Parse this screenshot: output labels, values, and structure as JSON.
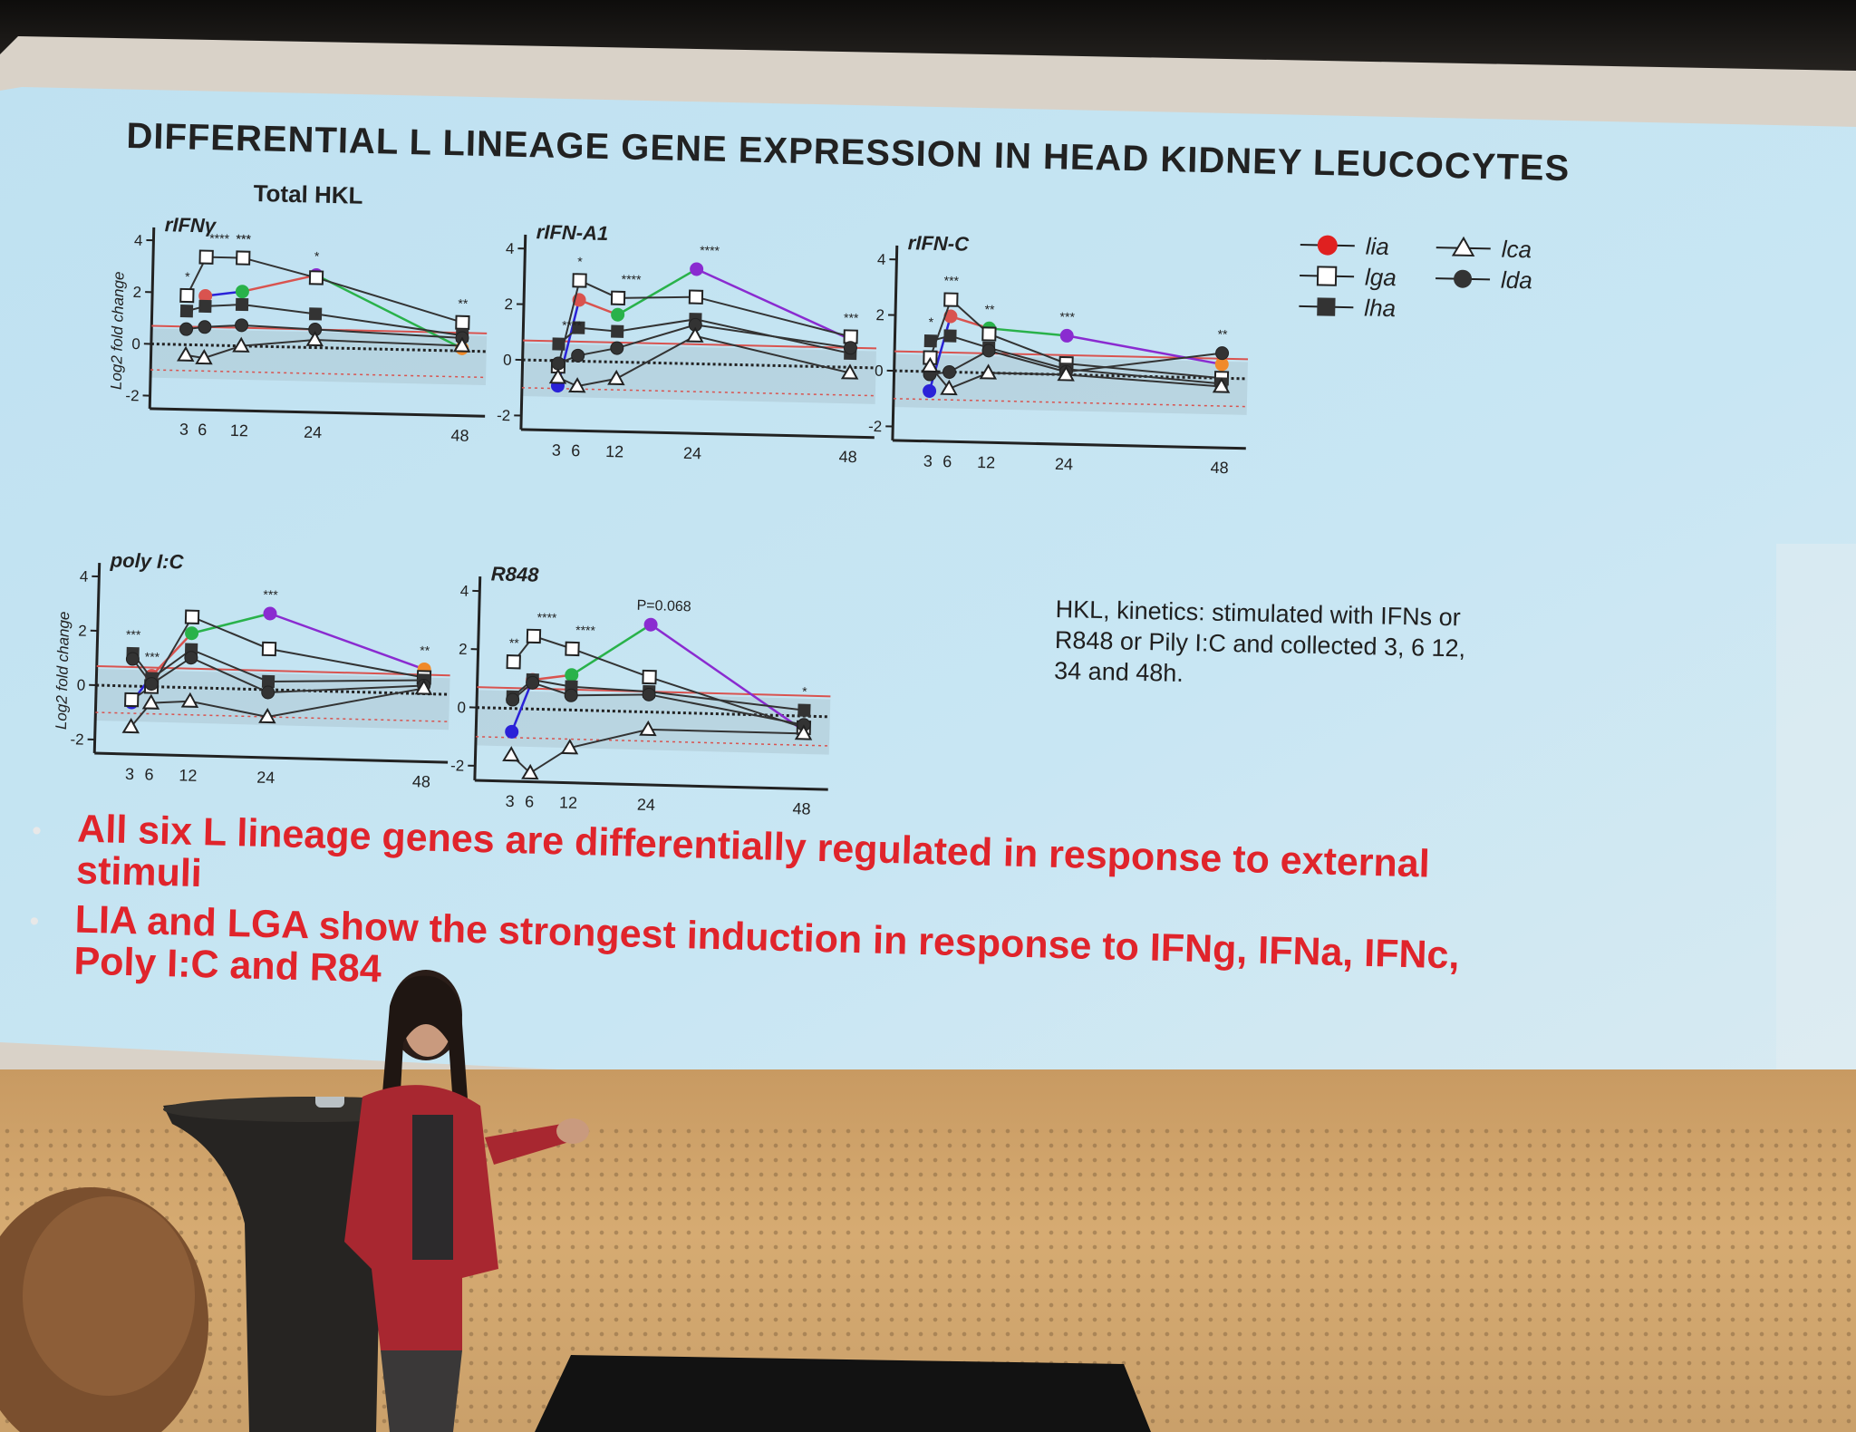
{
  "slide": {
    "title": "DIFFERENTIAL L LINEAGE GENE EXPRESSION  IN HEAD KIDNEY LEUCOCYTES",
    "panel_label": "Total HKL",
    "y_axis_label": "Log2 fold change",
    "description_lines": [
      "HKL, kinetics: stimulated with IFNs or",
      "R848 or Pily I:C and collected 3, 6 12,",
      "34 and 48h."
    ],
    "bullets": [
      {
        "lines": [
          "All six L lineage genes are differentially regulated in response to external",
          "stimuli"
        ]
      },
      {
        "lines": [
          "LIA and LGA show the strongest induction in response to IFNg, IFNa, IFNc,",
          "Poly I:C and R84"
        ]
      }
    ],
    "legend": [
      {
        "label": "lia",
        "marker": "filled-circle",
        "color": "#e02020"
      },
      {
        "label": "lca",
        "marker": "open-triangle",
        "color": "#222222"
      },
      {
        "label": "lga",
        "marker": "open-square",
        "color": "#222222"
      },
      {
        "label": "lda",
        "marker": "filled-circle",
        "color": "#333333"
      },
      {
        "label": "lha",
        "marker": "filled-square",
        "color": "#333333"
      }
    ],
    "colors": {
      "slide_bg": "#c6e4f2",
      "bullet_red": "#e0242b",
      "blue_point": "#2a22d8",
      "green_point": "#29b24a",
      "purple_point": "#8a2bd0",
      "orange_point": "#f08a2a",
      "reference_red": "#d9534f"
    }
  },
  "chart_data": [
    {
      "type": "line",
      "title": "rIFNγ",
      "x": [
        3,
        6,
        12,
        24,
        48
      ],
      "y_ticks": [
        4,
        2,
        0,
        -2
      ],
      "ylim": [
        -2.5,
        4.5
      ],
      "annotations": [
        "*",
        "****",
        "***",
        "***",
        "*",
        "**"
      ],
      "series": [
        {
          "name": "lia",
          "values": [
            null,
            1.9,
            2.1,
            2.8,
            0.1
          ]
        },
        {
          "name": "lga",
          "values": [
            1.9,
            3.4,
            3.4,
            2.7,
            1.1
          ]
        },
        {
          "name": "lha",
          "values": [
            1.3,
            1.5,
            1.6,
            1.3,
            0.6
          ]
        },
        {
          "name": "lda",
          "values": [
            0.6,
            0.7,
            0.8,
            0.7,
            0.5
          ]
        },
        {
          "name": "lca",
          "values": [
            -0.4,
            -0.5,
            0.0,
            0.3,
            0.2
          ]
        }
      ]
    },
    {
      "type": "line",
      "title": "rIFN-A1",
      "x": [
        3,
        6,
        12,
        24,
        48
      ],
      "y_ticks": [
        4,
        2,
        0,
        -2
      ],
      "ylim": [
        -2.5,
        4.5
      ],
      "annotations": [
        "****",
        "*",
        "****",
        "****",
        "***"
      ],
      "series": [
        {
          "name": "lia",
          "values": [
            -0.9,
            2.2,
            1.7,
            3.4,
            1.0
          ]
        },
        {
          "name": "lga",
          "values": [
            -0.2,
            2.9,
            2.3,
            2.4,
            1.1
          ]
        },
        {
          "name": "lha",
          "values": [
            0.6,
            1.2,
            1.1,
            1.6,
            0.5
          ]
        },
        {
          "name": "lda",
          "values": [
            -0.1,
            0.2,
            0.5,
            1.4,
            0.7
          ]
        },
        {
          "name": "lca",
          "values": [
            -0.6,
            -0.9,
            -0.6,
            1.0,
            -0.2
          ]
        }
      ]
    },
    {
      "type": "line",
      "title": "rIFN-C",
      "x": [
        3,
        6,
        12,
        24,
        48
      ],
      "y_ticks": [
        4,
        2,
        0,
        -2
      ],
      "ylim": [
        -2.5,
        4.5
      ],
      "annotations": [
        "*",
        "***",
        "**",
        "***",
        "**"
      ],
      "series": [
        {
          "name": "lia",
          "values": [
            -0.7,
            2.0,
            1.6,
            1.4,
            0.5
          ]
        },
        {
          "name": "lga",
          "values": [
            0.5,
            2.6,
            1.4,
            0.4,
            0.0
          ]
        },
        {
          "name": "lha",
          "values": [
            1.1,
            1.3,
            0.9,
            0.2,
            -0.2
          ]
        },
        {
          "name": "lda",
          "values": [
            -0.1,
            0.0,
            0.8,
            0.1,
            0.9
          ]
        },
        {
          "name": "lca",
          "values": [
            0.2,
            -0.6,
            0.0,
            0.0,
            -0.3
          ]
        }
      ]
    },
    {
      "type": "line",
      "title": "poly I:C",
      "x": [
        3,
        6,
        12,
        24,
        48
      ],
      "y_ticks": [
        4,
        2,
        0,
        -2
      ],
      "ylim": [
        -2.5,
        4.5
      ],
      "annotations": [
        "***",
        "***",
        "***",
        "**"
      ],
      "series": [
        {
          "name": "lia",
          "values": [
            -0.6,
            0.4,
            2.0,
            2.8,
            0.9
          ]
        },
        {
          "name": "lga",
          "values": [
            -0.5,
            0.0,
            2.6,
            1.5,
            0.6
          ]
        },
        {
          "name": "lha",
          "values": [
            1.2,
            0.3,
            1.4,
            0.3,
            0.5
          ]
        },
        {
          "name": "lda",
          "values": [
            1.0,
            0.1,
            1.1,
            -0.1,
            0.3
          ]
        },
        {
          "name": "lca",
          "values": [
            -1.5,
            -0.6,
            -0.5,
            -1.0,
            0.2
          ]
        }
      ]
    },
    {
      "type": "line",
      "title": "R848",
      "x": [
        3,
        6,
        12,
        24,
        48
      ],
      "y_ticks": [
        4,
        2,
        0,
        -2
      ],
      "ylim": [
        -2.5,
        4.5
      ],
      "annotations": [
        "**",
        "****",
        "****",
        "P=0.068",
        "*"
      ],
      "series": [
        {
          "name": "lia",
          "values": [
            -0.8,
            1.0,
            1.2,
            3.0,
            -0.5
          ]
        },
        {
          "name": "lga",
          "values": [
            1.6,
            2.5,
            2.1,
            1.2,
            -0.4
          ]
        },
        {
          "name": "lha",
          "values": [
            0.4,
            1.0,
            0.8,
            0.7,
            0.2
          ]
        },
        {
          "name": "lda",
          "values": [
            0.3,
            0.9,
            0.5,
            0.6,
            -0.3
          ]
        },
        {
          "name": "lca",
          "values": [
            -1.6,
            -2.2,
            -1.3,
            -0.6,
            -0.6
          ]
        }
      ]
    }
  ]
}
